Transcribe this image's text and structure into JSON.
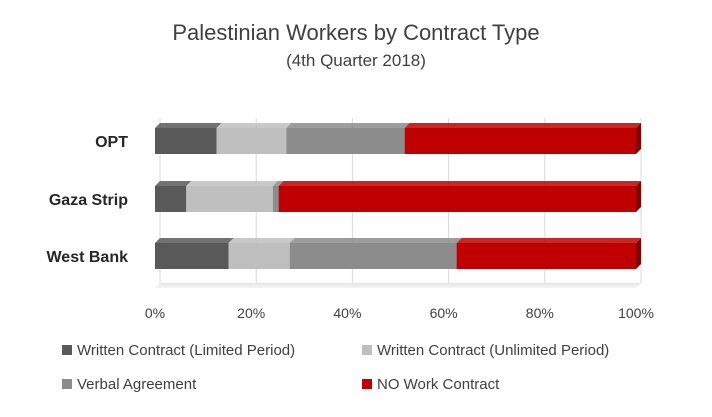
{
  "chart_data": {
    "type": "bar",
    "orientation": "horizontal",
    "stacked": true,
    "percent_stacked": true,
    "title": "Palestinian Workers by Contract Type",
    "subtitle": "(4th Quarter 2018)",
    "categories": [
      "OPT",
      "Gaza Strip",
      "West Bank"
    ],
    "xlim": [
      0,
      100
    ],
    "x_ticks": [
      "0%",
      "20%",
      "40%",
      "60%",
      "80%",
      "100%"
    ],
    "grid": true,
    "legend_position": "bottom",
    "series": [
      {
        "name": "Written Contract (Limited Period)",
        "color": "#595959",
        "values": [
          12.8,
          6.5,
          15.3
        ]
      },
      {
        "name": "Written Contract (Unlimited Period)",
        "color": "#bfbfbf",
        "values": [
          14.5,
          18.0,
          12.7
        ]
      },
      {
        "name": "Verbal Agreement",
        "color": "#8c8c8c",
        "values": [
          24.6,
          1.2,
          34.7
        ]
      },
      {
        "name": "NO Work Contract",
        "color": "#c00000",
        "values": [
          48.1,
          74.3,
          37.3
        ]
      }
    ]
  }
}
